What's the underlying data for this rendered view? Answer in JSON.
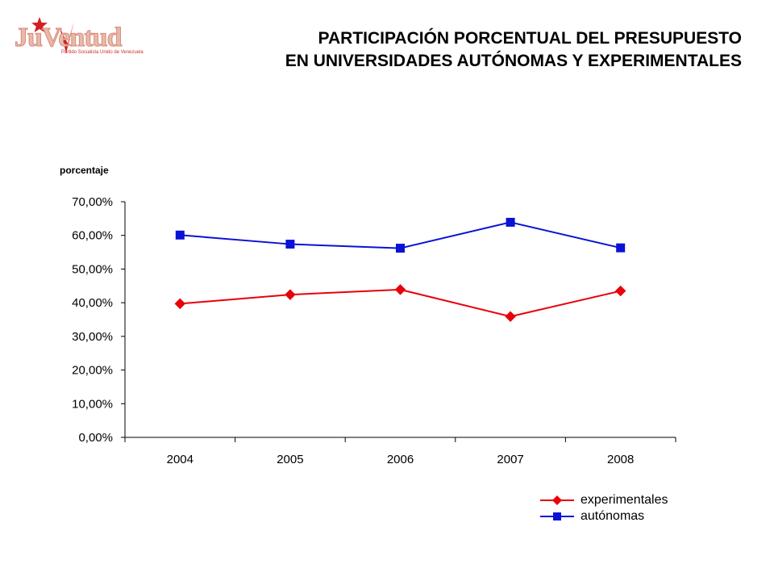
{
  "logo": {
    "text": "JuVentud",
    "subtext": "Partido Socialista Unido de Venezuela"
  },
  "title_lines": [
    "PARTICIPACIÓN PORCENTUAL DEL PRESUPUESTO",
    "EN UNIVERSIDADES AUTÓNOMAS Y EXPERIMENTALES"
  ],
  "chart_data": {
    "type": "line",
    "title": "PARTICIPACIÓN PORCENTUAL DEL PRESUPUESTO EN UNIVERSIDADES AUTÓNOMAS Y EXPERIMENTALES",
    "ylabel": "porcentaje",
    "xlabel": "",
    "categories": [
      "2004",
      "2005",
      "2006",
      "2007",
      "2008"
    ],
    "ylim": [
      0,
      70
    ],
    "yticks": [
      "0,00%",
      "10,00%",
      "20,00%",
      "30,00%",
      "40,00%",
      "50,00%",
      "60,00%",
      "70,00%"
    ],
    "grid": false,
    "legend_position": "bottom-right",
    "series": [
      {
        "name": "experimentales",
        "values": [
          39.7,
          42.4,
          43.9,
          35.9,
          43.5
        ],
        "color": "#e8000b",
        "marker": "diamond"
      },
      {
        "name": "autónomas",
        "values": [
          60.1,
          57.4,
          56.2,
          63.9,
          56.3
        ],
        "color": "#0a12d6",
        "marker": "square"
      }
    ]
  }
}
